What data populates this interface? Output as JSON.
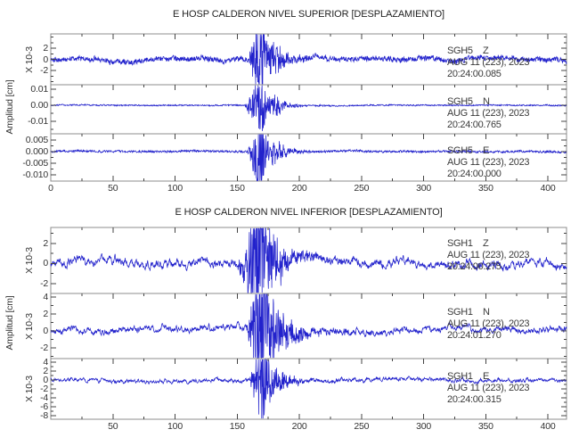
{
  "colors": {
    "trace": "#2222cc",
    "frame": "#8c8c8c",
    "tick": "#444444",
    "text": "#333333",
    "background": "#ffffff"
  },
  "chart_data": [
    {
      "type": "line",
      "title": "E HOSP CALDERON NIVEL SUPERIOR [DESPLAZAMIENTO]",
      "ylabel": "Amplitud [cm]",
      "xlim": [
        0,
        415
      ],
      "grid": false,
      "legend": "none",
      "xticks": [
        {
          "label": "0",
          "value": 0
        },
        {
          "label": "50",
          "value": 50
        },
        {
          "label": "100",
          "value": 100
        },
        {
          "label": "150",
          "value": 150
        },
        {
          "label": "200",
          "value": 200
        },
        {
          "label": "250",
          "value": 250
        },
        {
          "label": "300",
          "value": 300
        },
        {
          "label": "350",
          "value": 350
        },
        {
          "label": "400",
          "value": 400
        }
      ],
      "channels": [
        {
          "station": "SGH5",
          "component": "Z",
          "date": "AUG 11 (223), 2023",
          "start_time": "20:24:00.085",
          "scale_label": "X 10-3",
          "ytick_labels": [
            "2",
            "0",
            "-2"
          ],
          "ytick_values": [
            2,
            0,
            -2
          ],
          "ylim": [
            -4.56,
            4.56
          ],
          "waveform": {
            "noise_amp": 0.45,
            "jag": 0.15,
            "wander_amp": 0.5,
            "event_start": 159,
            "event_peak_t": 168.5,
            "decay_tau": 8,
            "peak_amp": 9,
            "packet2": [
              14,
              2.2,
              9
            ],
            "coda": [
              1.0,
              28
            ],
            "neg_bias": 0,
            "seed": 101
          }
        },
        {
          "station": "SGH5",
          "component": "N",
          "date": "AUG 11 (223), 2023",
          "start_time": "20:24:00.765",
          "scale_label": "",
          "ytick_labels": [
            "0.01",
            "0.00",
            "-0.01"
          ],
          "ytick_values": [
            0.01,
            0,
            -0.01
          ],
          "ylim": [
            -0.0178,
            0.0128
          ],
          "waveform": {
            "noise_amp": 0.0004,
            "jag": 0.3,
            "wander_amp": 0.00025,
            "event_start": 156,
            "event_peak_t": 169,
            "decay_tau": 7,
            "peak_amp": 0.02,
            "packet2": [
              13,
              0.005,
              8
            ],
            "coda": [
              0.0011,
              22
            ],
            "neg_bias": 0.12,
            "seed": 202
          }
        },
        {
          "station": "SGH5",
          "component": "E",
          "date": "AUG 11 (223), 2023",
          "start_time": "20:24:00.000",
          "scale_label": "",
          "ytick_labels": [
            "0.005",
            "0.000",
            "-0.005",
            "-0.010"
          ],
          "ytick_values": [
            0.005,
            0,
            -0.005,
            -0.01
          ],
          "ylim": [
            -0.0127,
            0.0077
          ],
          "waveform": {
            "noise_amp": 0.00042,
            "jag": 0.3,
            "wander_amp": 0.00028,
            "event_start": 158,
            "event_peak_t": 168,
            "decay_tau": 7.5,
            "peak_amp": 0.016,
            "packet2": [
              15,
              0.0045,
              8
            ],
            "coda": [
              0.001,
              24
            ],
            "neg_bias": 0.25,
            "seed": 303
          }
        }
      ]
    },
    {
      "type": "line",
      "title": "E HOSP CALDERON NIVEL INFERIOR [DESPLAZAMIENTO]",
      "ylabel": "Amplitud [cm]",
      "xlim": [
        0,
        415
      ],
      "grid": false,
      "legend": "none",
      "xticks": [
        {
          "label": "50",
          "value": 50
        },
        {
          "label": "100",
          "value": 100
        },
        {
          "label": "150",
          "value": 150
        },
        {
          "label": "200",
          "value": 200
        },
        {
          "label": "250",
          "value": 250
        },
        {
          "label": "300",
          "value": 300
        },
        {
          "label": "350",
          "value": 350
        },
        {
          "label": "400",
          "value": 400
        }
      ],
      "channels": [
        {
          "station": "SGH1",
          "component": "Z",
          "date": "AUG 11 (223), 2023",
          "start_time": "20:24:00.275",
          "scale_label": "X 10-3",
          "ytick_labels": [
            "2",
            "0",
            "-2"
          ],
          "ytick_values": [
            2,
            0,
            -2
          ],
          "ylim": [
            -2.98,
            3.6
          ],
          "waveform": {
            "noise_amp": 0.38,
            "jag": 0.7,
            "wander_amp": 0.45,
            "event_start": 150,
            "event_peak_t": 169,
            "decay_tau": 9,
            "peak_amp": 6.5,
            "packet2": [
              13,
              1.8,
              9
            ],
            "coda": [
              0.75,
              40
            ],
            "neg_bias": 0,
            "seed": 404
          }
        },
        {
          "station": "SGH1",
          "component": "N",
          "date": "AUG 11 (223), 2023",
          "start_time": "20:24:01.270",
          "scale_label": "X 10-3",
          "ytick_labels": [
            "4",
            "2",
            "0",
            "-2"
          ],
          "ytick_values": [
            4,
            2,
            0,
            -2
          ],
          "ylim": [
            -3.26,
            4.42
          ],
          "waveform": {
            "noise_amp": 0.35,
            "jag": 0.7,
            "wander_amp": 0.4,
            "event_start": 157,
            "event_peak_t": 170,
            "decay_tau": 10,
            "peak_amp": 8.5,
            "packet2": [
              15,
              2.2,
              10
            ],
            "coda": [
              0.85,
              42
            ],
            "neg_bias": 0,
            "seed": 505
          }
        },
        {
          "station": "SGH1",
          "component": "E",
          "date": "AUG 11 (223), 2023",
          "start_time": "20:24:00.315",
          "scale_label": "X 10-3",
          "ytick_labels": [
            "4",
            "2",
            "0",
            "-2",
            "-4",
            "-6",
            "-8"
          ],
          "ytick_values": [
            4,
            2,
            0,
            -2,
            -4,
            -6,
            -8
          ],
          "ylim": [
            -8.8,
            4.8
          ],
          "waveform": {
            "noise_amp": 0.4,
            "jag": 0.68,
            "wander_amp": 0.35,
            "event_start": 160,
            "event_peak_t": 170,
            "decay_tau": 7,
            "peak_amp": 12,
            "packet2": [
              14,
              2,
              9
            ],
            "coda": [
              0.8,
              35
            ],
            "neg_bias": 0.3,
            "seed": 606
          }
        }
      ]
    }
  ]
}
